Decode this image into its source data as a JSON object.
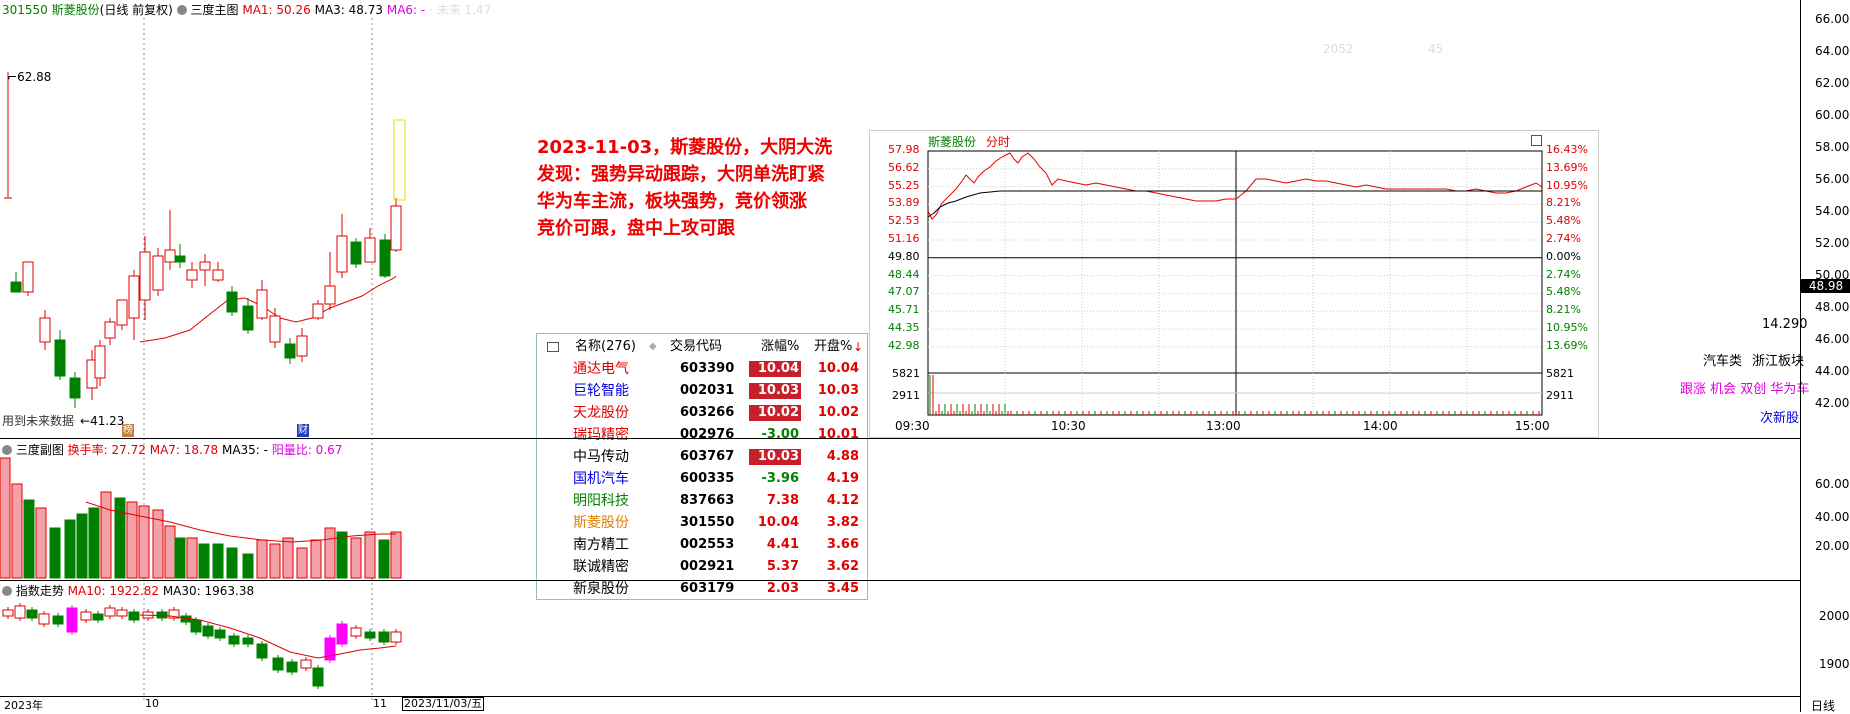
{
  "main_header": {
    "code": "301550",
    "name": "斯菱股份",
    "mode": "(日线 前复权)",
    "indicator": "三度主图",
    "ma1": "MA1: 50.26",
    "ma3": "MA3: 48.73",
    "ma6": "MA6: -",
    "faint": "· 未来 1.47"
  },
  "price_axis": [
    "66.00",
    "64.00",
    "62.00",
    "60.00",
    "58.00",
    "56.00",
    "54.00",
    "52.00",
    "50.00",
    "48.00",
    "46.00",
    "44.00",
    "42.00"
  ],
  "last_price": "48.98",
  "hi_label": "62.88",
  "lo_label": "41.23",
  "future_note": "用到未来数据",
  "marker_1": "榜",
  "marker_2": "财",
  "faint_top": {
    "a": "2052",
    "b": "45"
  },
  "annotation": [
    "2023-11-03，斯菱股份，大阴大洗",
    "发现：强势异动跟踪，大阴单洗盯紧",
    "华为车主流，板块强势，竞价领涨",
    "竞价可跟，盘中上攻可跟"
  ],
  "sub_header": {
    "indicator": "三度副图",
    "turnover": "换手率: 27.72",
    "ma7": "MA7: 18.78",
    "ma35": "MA35: -",
    "yin_yang": "阳量比: 0.67"
  },
  "sub_axis": [
    "60.00",
    "40.00",
    "20.00"
  ],
  "index_header": {
    "indicator": "指数走势",
    "ma10": "MA10: 1922.82",
    "ma30": "MA30: 1963.38"
  },
  "index_axis": [
    "2000",
    "1900"
  ],
  "bottom_axis": {
    "year": "2023年",
    "m10": "10",
    "m11": "11",
    "date": "2023/11/03/五",
    "period": "日线"
  },
  "side_info": {
    "val": "14.290",
    "cat": "汽车类",
    "sector": "浙江板块",
    "tags": "跟涨 机会 双创 华为车",
    "next": "次新股"
  },
  "mini_chart": {
    "name": "斯菱股份",
    "type": "分时",
    "left_axis": [
      "57.98",
      "56.62",
      "55.25",
      "53.89",
      "52.53",
      "51.16",
      "49.80",
      "48.44",
      "47.07",
      "45.71",
      "44.35",
      "42.98"
    ],
    "right_axis": [
      "16.43%",
      "13.69%",
      "10.95%",
      "8.21%",
      "5.48%",
      "2.74%",
      "0.00%",
      "2.74%",
      "5.48%",
      "8.21%",
      "10.95%",
      "13.69%"
    ],
    "vol_labels": [
      "5821",
      "2911"
    ],
    "times": [
      "09:30",
      "10:30",
      "13:00",
      "14:00",
      "15:00"
    ]
  },
  "table": {
    "headers": {
      "name": "名称(276)",
      "code": "交易代码",
      "chg": "涨幅%",
      "open": "开盘%"
    },
    "rows": [
      {
        "name": "通达电气",
        "code": "603390",
        "chg": "10.04",
        "open": "10.04",
        "name_color": "#e00000",
        "chg_color": "#fff",
        "chg_bg": "#c8202a",
        "open_color": "#e00000"
      },
      {
        "name": "巨轮智能",
        "code": "002031",
        "chg": "10.03",
        "open": "10.03",
        "name_color": "#0000e0",
        "chg_color": "#fff",
        "chg_bg": "#c8202a",
        "open_color": "#e00000"
      },
      {
        "name": "天龙股份",
        "code": "603266",
        "chg": "10.02",
        "open": "10.02",
        "name_color": "#e00000",
        "chg_color": "#fff",
        "chg_bg": "#c8202a",
        "open_color": "#e00000"
      },
      {
        "name": "瑞玛精密",
        "code": "002976",
        "chg": "-3.00",
        "open": "10.01",
        "name_color": "#e00000",
        "chg_color": "#008000",
        "chg_bg": "transparent",
        "open_color": "#e00000"
      },
      {
        "name": "中马传动",
        "code": "603767",
        "chg": "10.03",
        "open": "4.88",
        "name_color": "#000000",
        "chg_color": "#fff",
        "chg_bg": "#c8202a",
        "open_color": "#e00000"
      },
      {
        "name": "国机汽车",
        "code": "600335",
        "chg": "-3.96",
        "open": "4.19",
        "name_color": "#0000e0",
        "chg_color": "#008000",
        "chg_bg": "transparent",
        "open_color": "#e00000"
      },
      {
        "name": "明阳科技",
        "code": "837663",
        "chg": "7.38",
        "open": "4.12",
        "name_color": "#008000",
        "chg_color": "#e00000",
        "chg_bg": "transparent",
        "open_color": "#e00000"
      },
      {
        "name": "斯菱股份",
        "code": "301550",
        "chg": "10.04",
        "open": "3.82",
        "name_color": "#e08000",
        "chg_color": "#e00000",
        "chg_bg": "transparent",
        "open_color": "#e00000"
      },
      {
        "name": "南方精工",
        "code": "002553",
        "chg": "4.41",
        "open": "3.66",
        "name_color": "#000000",
        "chg_color": "#e00000",
        "chg_bg": "transparent",
        "open_color": "#e00000"
      },
      {
        "name": "联诚精密",
        "code": "002921",
        "chg": "5.37",
        "open": "3.62",
        "name_color": "#000000",
        "chg_color": "#e00000",
        "chg_bg": "transparent",
        "open_color": "#e00000"
      },
      {
        "name": "新泉股份",
        "code": "603179",
        "chg": "2.03",
        "open": "3.45",
        "name_color": "#000000",
        "chg_color": "#e00000",
        "chg_bg": "transparent",
        "open_color": "#e00000"
      }
    ]
  },
  "colors": {
    "up": "#e00000",
    "down": "#008000",
    "ma_line": "#e00000",
    "magenta": "#ff00ff",
    "pink_fill": "#f4a0a8"
  }
}
